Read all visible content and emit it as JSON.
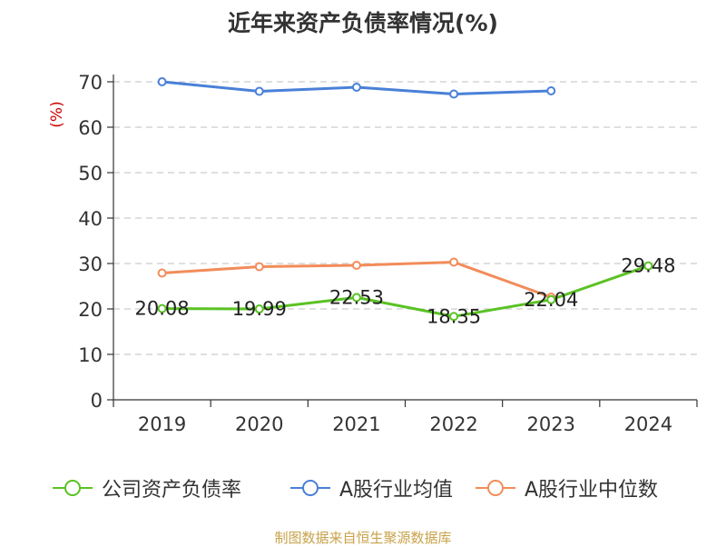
{
  "chart_data": {
    "type": "line",
    "title": "近年来资产负债率情况(%)",
    "ylabel": "(%)",
    "xlabel": "",
    "categories": [
      "2019",
      "2020",
      "2021",
      "2022",
      "2023",
      "2024"
    ],
    "yticks": [
      "0",
      "10",
      "20",
      "30",
      "40",
      "50",
      "60",
      "70"
    ],
    "ylim": [
      0,
      70
    ],
    "grid": true,
    "legend_position": "bottom",
    "series": [
      {
        "name": "公司资产负债率",
        "color": "#5ac224",
        "values": [
          20.08,
          19.99,
          22.53,
          18.35,
          22.04,
          29.48
        ],
        "labels": [
          "20.08",
          "19.99",
          "22.53",
          "18.35",
          "22.04",
          "29.48"
        ]
      },
      {
        "name": "A股行业均值",
        "color": "#4a80d8",
        "values": [
          70.0,
          67.9,
          68.8,
          67.3,
          68.0,
          null
        ]
      },
      {
        "name": "A股行业中位数",
        "color": "#f28c5a",
        "values": [
          27.9,
          29.3,
          29.6,
          30.3,
          22.6,
          null
        ]
      }
    ]
  },
  "footer": {
    "source": "制图数据来自恒生聚源数据库"
  }
}
